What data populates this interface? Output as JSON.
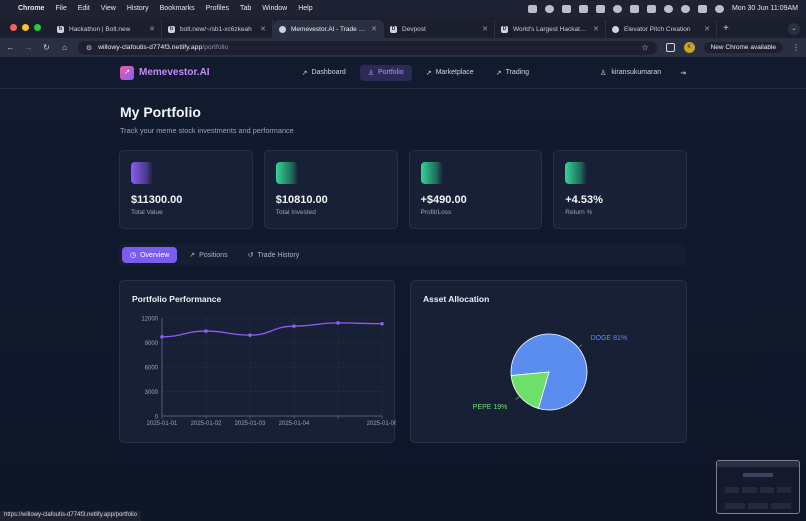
{
  "menubar": {
    "items": [
      "Chrome",
      "File",
      "Edit",
      "View",
      "History",
      "Bookmarks",
      "Profiles",
      "Tab",
      "Window",
      "Help"
    ],
    "datetime": "Mon 30 Jun  11:09AM"
  },
  "browser": {
    "tabs": [
      {
        "icon": "bolt-icon",
        "title": "Hackathon | Bolt.new",
        "active": false
      },
      {
        "icon": "bolt-icon",
        "title": "bolt.new/~/sb1-xc6zkeah",
        "active": false
      },
      {
        "icon": "globe-icon",
        "title": "Memevestor.AI - Trade Meme",
        "active": true
      },
      {
        "icon": "devpost-icon",
        "title": "Devpost",
        "active": false
      },
      {
        "icon": "devpost-icon",
        "title": "World's Largest Hackathon p",
        "active": false
      },
      {
        "icon": "chatgpt-icon",
        "title": "Elevator Pitch Creation",
        "active": false
      }
    ],
    "url_host": "willowy-clafoutis-d774f3.netlify.app",
    "url_path": "/portfolio",
    "new_chrome_label": "New Chrome available",
    "status_url": "https://willowy-clafoutis-d774f3.netlify.app/portfolio"
  },
  "app": {
    "brand": "Memevestor.AI",
    "nav": [
      {
        "label": "Dashboard",
        "icon": "trend-icon",
        "active": false
      },
      {
        "label": "Portfolio",
        "icon": "user-icon",
        "active": true
      },
      {
        "label": "Marketplace",
        "icon": "trend-icon",
        "active": false
      },
      {
        "label": "Trading",
        "icon": "trend-icon",
        "active": false
      }
    ],
    "username": "kiransukumaran"
  },
  "page": {
    "title": "My Portfolio",
    "subtitle": "Track your meme stock investments and performance"
  },
  "stats": [
    {
      "value": "$11300.00",
      "label": "Total Value",
      "color": "#8b5cf6"
    },
    {
      "value": "$10810.00",
      "label": "Total Invested",
      "color": "#34d399"
    },
    {
      "value": "+$490.00",
      "label": "Profit/Loss",
      "color": "#34d399"
    },
    {
      "value": "+4.53%",
      "label": "Return %",
      "color": "#34d399"
    }
  ],
  "portfolio_tabs": [
    {
      "label": "Overview",
      "icon": "clock-icon",
      "active": true
    },
    {
      "label": "Positions",
      "icon": "trend-icon",
      "active": false
    },
    {
      "label": "Trade History",
      "icon": "history-icon",
      "active": false
    }
  ],
  "chart_data": [
    {
      "type": "line",
      "title": "Portfolio Performance",
      "x": [
        "2025-01-01",
        "2025-01-02",
        "2025-01-03",
        "2025-01-04",
        "2025-01-05",
        "2025-01-06"
      ],
      "x_tick_labels": [
        "2025-01-01",
        "2025-01-02",
        "2025-01-03",
        "2025-01-04",
        "",
        "2025-01-06"
      ],
      "values": [
        9700,
        10400,
        9900,
        11000,
        11400,
        11300
      ],
      "y_ticks": [
        0,
        3000,
        6000,
        9000,
        12000
      ],
      "ylim": [
        0,
        12000
      ],
      "grid": true,
      "color": "#8b5cf6"
    },
    {
      "type": "pie",
      "title": "Asset Allocation",
      "slices": [
        {
          "label": "DOGE",
          "value": 81,
          "text": "DOGE 81%",
          "color": "#5b8def"
        },
        {
          "label": "PEPE",
          "value": 19,
          "text": "PEPE 19%",
          "color": "#6ee06a"
        }
      ]
    }
  ]
}
